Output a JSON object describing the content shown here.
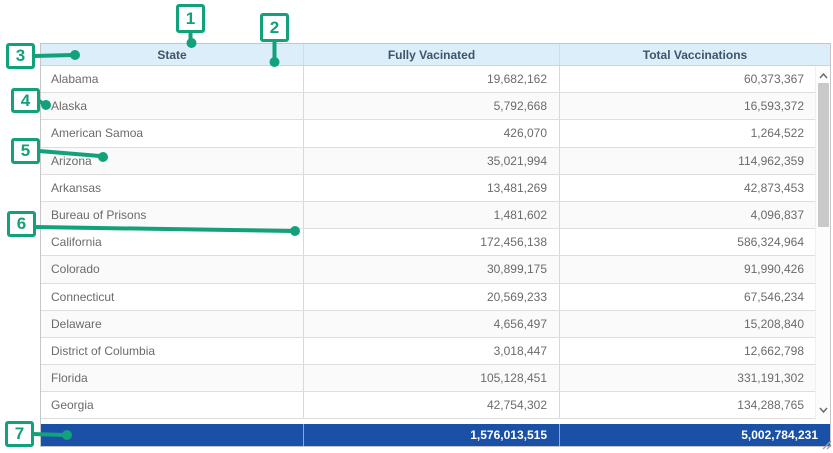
{
  "table": {
    "columns": [
      "State",
      "Fully Vacinated",
      "Total Vaccinations"
    ],
    "rows": [
      {
        "state": "Alabama",
        "fully_vaccinated": "19,682,162",
        "total_vaccinations": "60,373,367"
      },
      {
        "state": "Alaska",
        "fully_vaccinated": "5,792,668",
        "total_vaccinations": "16,593,372"
      },
      {
        "state": "American Samoa",
        "fully_vaccinated": "426,070",
        "total_vaccinations": "1,264,522"
      },
      {
        "state": "Arizona",
        "fully_vaccinated": "35,021,994",
        "total_vaccinations": "114,962,359"
      },
      {
        "state": "Arkansas",
        "fully_vaccinated": "13,481,269",
        "total_vaccinations": "42,873,453"
      },
      {
        "state": "Bureau of Prisons",
        "fully_vaccinated": "1,481,602",
        "total_vaccinations": "4,096,837"
      },
      {
        "state": "California",
        "fully_vaccinated": "172,456,138",
        "total_vaccinations": "586,324,964"
      },
      {
        "state": "Colorado",
        "fully_vaccinated": "30,899,175",
        "total_vaccinations": "91,990,426"
      },
      {
        "state": "Connecticut",
        "fully_vaccinated": "20,569,233",
        "total_vaccinations": "67,546,234"
      },
      {
        "state": "Delaware",
        "fully_vaccinated": "4,656,497",
        "total_vaccinations": "15,208,840"
      },
      {
        "state": "District of Columbia",
        "fully_vaccinated": "3,018,447",
        "total_vaccinations": "12,662,798"
      },
      {
        "state": "Florida",
        "fully_vaccinated": "105,128,451",
        "total_vaccinations": "331,191,302"
      },
      {
        "state": "Georgia",
        "fully_vaccinated": "42,754,302",
        "total_vaccinations": "134,288,765"
      }
    ],
    "totals": {
      "fully_vaccinated": "1,576,013,515",
      "total_vaccinations": "5,002,784,231"
    }
  },
  "annotations": [
    {
      "label": "1"
    },
    {
      "label": "2"
    },
    {
      "label": "3"
    },
    {
      "label": "4"
    },
    {
      "label": "5"
    },
    {
      "label": "6"
    },
    {
      "label": "7"
    }
  ],
  "colors": {
    "accent_green": "#13a17b",
    "total_row_bg": "#1a51a6",
    "header_bg": "#dceef9"
  }
}
